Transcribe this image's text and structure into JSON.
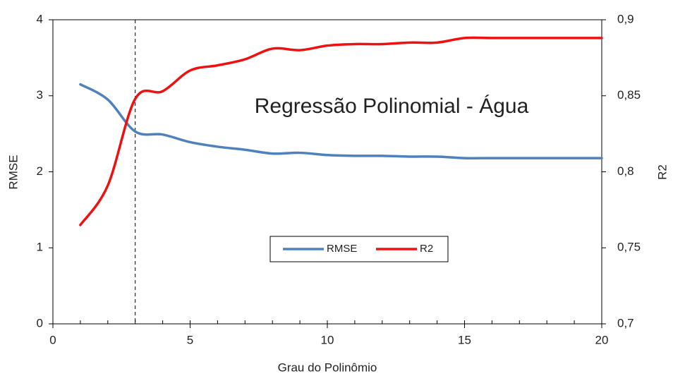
{
  "chart_data": {
    "type": "line",
    "annotation": "Regressão Polinomial - Água",
    "xlabel": "Grau do Polinômio",
    "ylabel": "RMSE",
    "y2label": "R2",
    "x": [
      1,
      2,
      3,
      4,
      5,
      6,
      7,
      8,
      9,
      10,
      11,
      12,
      13,
      14,
      15,
      16,
      17,
      18,
      19,
      20
    ],
    "series": [
      {
        "name": "RMSE",
        "color": "#4f81bd",
        "axis": "y",
        "values": [
          3.15,
          2.95,
          2.53,
          2.49,
          2.39,
          2.33,
          2.29,
          2.24,
          2.25,
          2.22,
          2.21,
          2.21,
          2.2,
          2.2,
          2.18,
          2.18,
          2.18,
          2.18,
          2.18,
          2.18
        ]
      },
      {
        "name": "R2",
        "color": "#ee1111",
        "axis": "y2",
        "values": [
          0.765,
          0.791,
          0.848,
          0.853,
          0.8666,
          0.87,
          0.874,
          0.881,
          0.88,
          0.883,
          0.884,
          0.884,
          0.885,
          0.885,
          0.888,
          0.888,
          0.888,
          0.888,
          0.888,
          0.888
        ]
      }
    ],
    "vline": 3,
    "xlim": [
      0,
      20
    ],
    "xticks": [
      0,
      5,
      10,
      15,
      20
    ],
    "ylim": [
      0,
      4
    ],
    "yticks": [
      0,
      1,
      2,
      3,
      4
    ],
    "y2lim": [
      0.7,
      0.9
    ],
    "y2ticks": [
      {
        "value": 0.7,
        "label": "0,7"
      },
      {
        "value": 0.75,
        "label": "0,75"
      },
      {
        "value": 0.8,
        "label": "0,8"
      },
      {
        "value": 0.85,
        "label": "0,85"
      },
      {
        "value": 0.9,
        "label": "0,9"
      }
    ],
    "legend": "lower center"
  }
}
